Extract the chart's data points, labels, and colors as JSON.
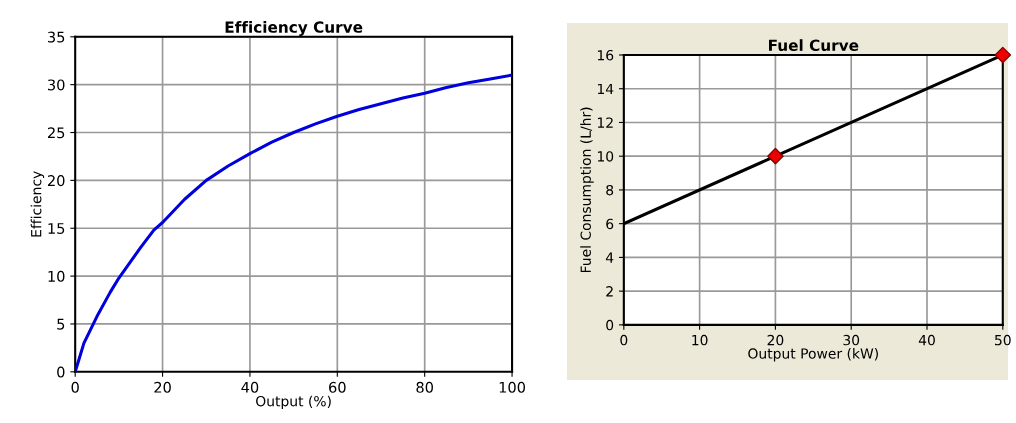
{
  "chart_data": [
    {
      "type": "line",
      "title": "Efficiency Curve",
      "xlabel": "Output (%)",
      "ylabel": "Efficiency",
      "xlim": [
        0,
        100
      ],
      "xticks": [
        0,
        20,
        40,
        60,
        80,
        100
      ],
      "ylim": [
        0,
        35
      ],
      "yticks": [
        0,
        5,
        10,
        15,
        20,
        25,
        30,
        35
      ],
      "grid": true,
      "series": [
        {
          "color": "#0000dd",
          "x": [
            0,
            1,
            2,
            5,
            8,
            10,
            15,
            18,
            20,
            25,
            30,
            35,
            40,
            45,
            50,
            55,
            60,
            65,
            70,
            75,
            80,
            85,
            90,
            95,
            100
          ],
          "values": [
            0,
            1.5,
            3,
            5.8,
            8.3,
            9.8,
            13,
            14.8,
            15.6,
            18,
            20,
            21.5,
            22.8,
            24,
            25,
            25.9,
            26.7,
            27.4,
            28,
            28.6,
            29.1,
            29.7,
            30.2,
            30.6,
            31
          ]
        }
      ]
    },
    {
      "type": "line",
      "title": "Fuel Curve",
      "xlabel": "Output Power (kW)",
      "ylabel": "Fuel Consumption (L/hr)",
      "xlim": [
        0,
        50
      ],
      "xticks": [
        0,
        10,
        20,
        30,
        40,
        50
      ],
      "ylim": [
        0,
        16
      ],
      "yticks": [
        0,
        2,
        4,
        6,
        8,
        10,
        12,
        14,
        16
      ],
      "grid": true,
      "series": [
        {
          "color": "#000000",
          "x": [
            0,
            50
          ],
          "values": [
            6,
            16
          ]
        },
        {
          "type": "scatter",
          "color": "#ee0000",
          "marker": "diamond",
          "x": [
            20,
            50
          ],
          "values": [
            10,
            16
          ]
        }
      ]
    }
  ]
}
